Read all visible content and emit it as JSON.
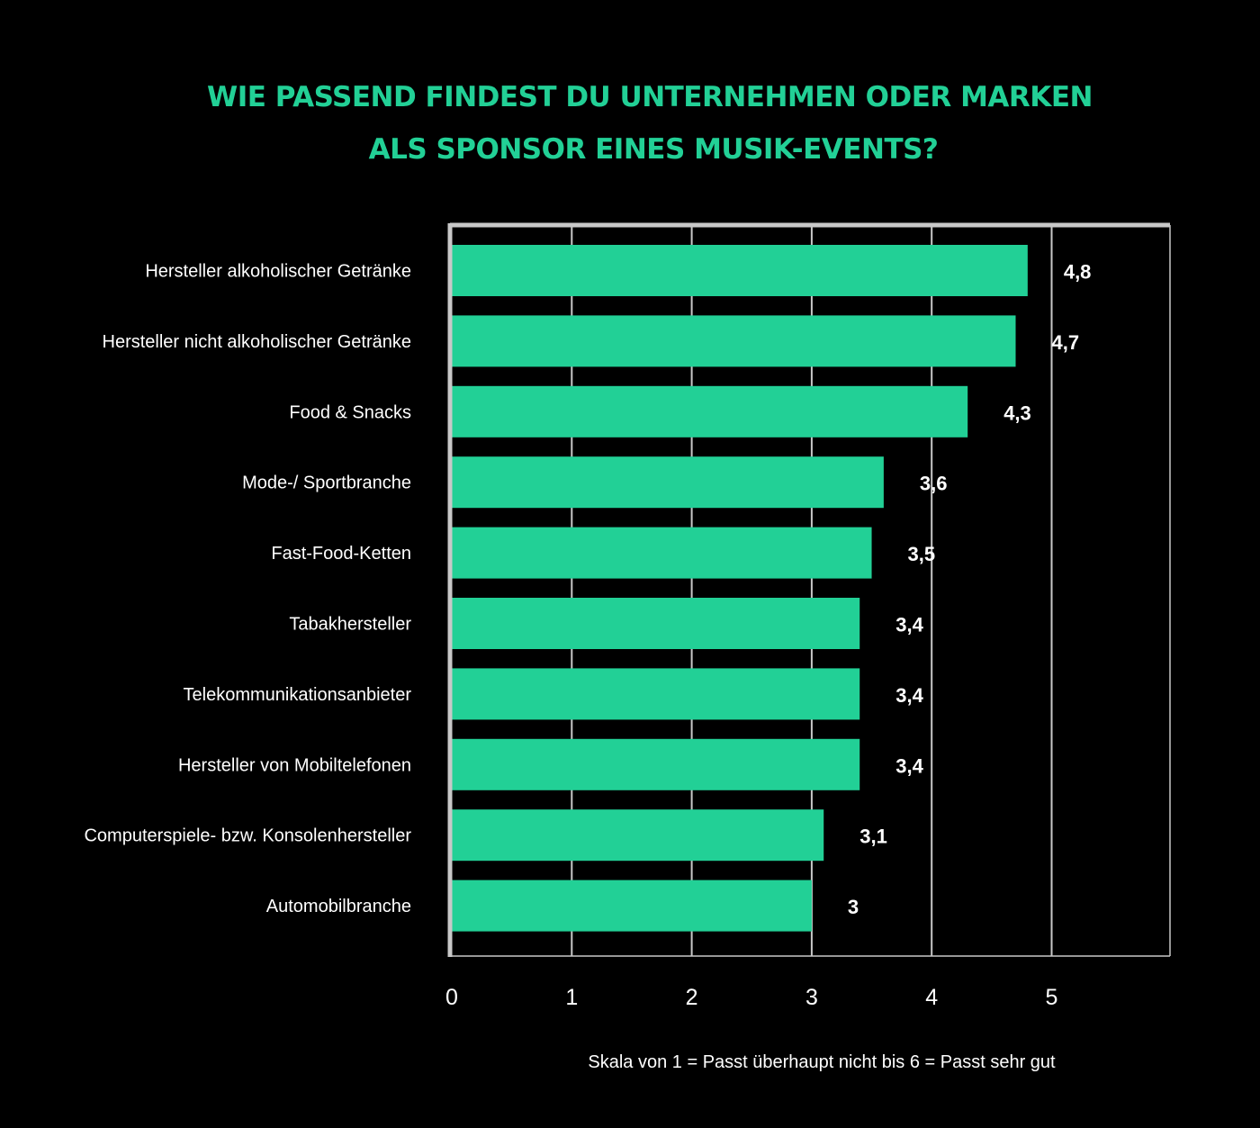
{
  "colors": {
    "background": "#000000",
    "accent": "#22d096",
    "text": "#ffffff",
    "grid": "#c8c8c8",
    "frame": "#c8c8c8"
  },
  "chart_data": {
    "type": "bar",
    "orientation": "horizontal",
    "title_lines": [
      "WIE PASSEND FINDEST DU UNTERNEHMEN ODER MARKEN",
      "ALS SPONSOR EINES MUSIK-EVENTS?"
    ],
    "categories": [
      "Hersteller alkoholischer Getränke",
      "Hersteller nicht alkoholischer Getränke",
      "Food & Snacks",
      "Mode-/ Sportbranche",
      "Fast-Food-Ketten",
      "Tabakhersteller",
      "Telekommunikationsanbieter",
      "Hersteller von Mobiltelefonen",
      "Computerspiele- bzw. Konsolenhersteller",
      "Automobilbranche"
    ],
    "values": [
      4.8,
      4.7,
      4.3,
      3.6,
      3.5,
      3.4,
      3.4,
      3.4,
      3.1,
      3.0
    ],
    "value_labels": [
      "4,8",
      "4,7",
      "4,3",
      "3,6",
      "3,5",
      "3,4",
      "3,4",
      "3,4",
      "3,1",
      "3"
    ],
    "xticks": [
      "0",
      "1",
      "2",
      "3",
      "4",
      "5"
    ],
    "xlim": [
      0,
      6
    ],
    "grid": true,
    "note": "Skala von 1 = Passt überhaupt nicht bis 6 = Passt sehr gut"
  }
}
